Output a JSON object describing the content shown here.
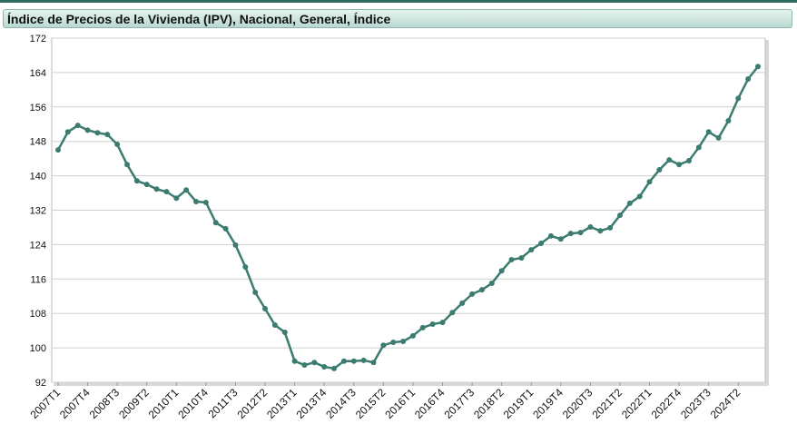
{
  "chart_data": {
    "type": "line",
    "title": "Índice de Precios de la Vivienda (IPV), Nacional, General, Índice",
    "categories": [
      "2007T1",
      null,
      null,
      "2007T4",
      null,
      null,
      "2008T3",
      null,
      null,
      "2009T2",
      null,
      null,
      "2010T1",
      null,
      null,
      "2010T4",
      null,
      null,
      "2011T3",
      null,
      null,
      "2012T2",
      null,
      null,
      "2013T1",
      null,
      null,
      "2013T4",
      null,
      null,
      "2014T3",
      null,
      null,
      "2015T2",
      null,
      null,
      "2016T1",
      null,
      null,
      "2016T4",
      null,
      null,
      "2017T3",
      null,
      null,
      "2018T2",
      null,
      null,
      "2019T1",
      null,
      null,
      "2019T4",
      null,
      null,
      "2020T3",
      null,
      null,
      "2021T2",
      null,
      null,
      "2022T1",
      null,
      null,
      "2022T4",
      null,
      null,
      "2023T3",
      null,
      null,
      "2024T2",
      null,
      null
    ],
    "series": [
      {
        "color": "#3b7b70",
        "values": [
          146,
          150.2,
          151.7,
          150.6,
          150,
          149.6,
          147.3,
          142.6,
          138.8,
          138,
          136.9,
          136.3,
          134.8,
          136.7,
          134,
          133.8,
          129.1,
          127.7,
          123.9,
          118.8,
          112.9,
          109.1,
          105.3,
          103.6,
          96.9,
          96,
          96.6,
          95.6,
          95.2,
          96.9,
          96.9,
          97.1,
          96.6,
          100.6,
          101.3,
          101.5,
          102.8,
          104.7,
          105.5,
          105.9,
          108.2,
          110.4,
          112.5,
          113.5,
          115,
          117.9,
          120.5,
          120.9,
          122.8,
          124.3,
          126,
          125.3,
          126.6,
          126.8,
          128.1,
          127.2,
          127.9,
          130.8,
          133.6,
          135.2,
          138.6,
          141.4,
          143.7,
          142.6,
          143.5,
          146.6,
          150.2,
          148.8,
          152.8,
          158,
          162.5,
          165.4
        ]
      }
    ],
    "ylim": [
      92,
      172
    ],
    "yticks": [
      92,
      100,
      108,
      116,
      124,
      132,
      140,
      148,
      156,
      164,
      172
    ],
    "grid": true
  }
}
